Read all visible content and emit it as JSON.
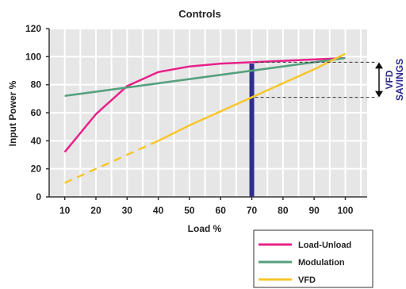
{
  "chart_data": {
    "type": "line",
    "title": "Controls",
    "xlabel": "Load %",
    "ylabel": "Input Power %",
    "xlim": [
      5,
      107
    ],
    "ylim": [
      0,
      120
    ],
    "x_ticks": [
      10,
      20,
      30,
      40,
      50,
      60,
      70,
      80,
      90,
      100
    ],
    "y_ticks": [
      0,
      20,
      40,
      60,
      80,
      100,
      120
    ],
    "grid": true,
    "legend_position": "bottom-right",
    "series": [
      {
        "name": "Load-Unload",
        "color": "#e8218a",
        "x": [
          10,
          20,
          30,
          40,
          50,
          60,
          70,
          80,
          90,
          100
        ],
        "y": [
          32,
          59,
          79,
          89,
          93,
          95,
          96,
          97,
          98,
          99
        ]
      },
      {
        "name": "Modulation",
        "color": "#55a07e",
        "x": [
          10,
          100
        ],
        "y": [
          72,
          99
        ]
      },
      {
        "name": "VFD",
        "color": "#f7c62b",
        "x": [
          10,
          20,
          30,
          40,
          50,
          60,
          70,
          80,
          90,
          100
        ],
        "y": [
          10,
          20,
          30,
          40,
          51,
          61,
          71,
          81,
          91,
          102
        ],
        "dashed_until_x": 40
      }
    ],
    "marker_line": {
      "x": 70,
      "color": "#2e2e8e"
    },
    "annotation": {
      "line1": "VFD",
      "line2": "SAVINGS",
      "from_y": 96,
      "to_y": 71
    }
  }
}
